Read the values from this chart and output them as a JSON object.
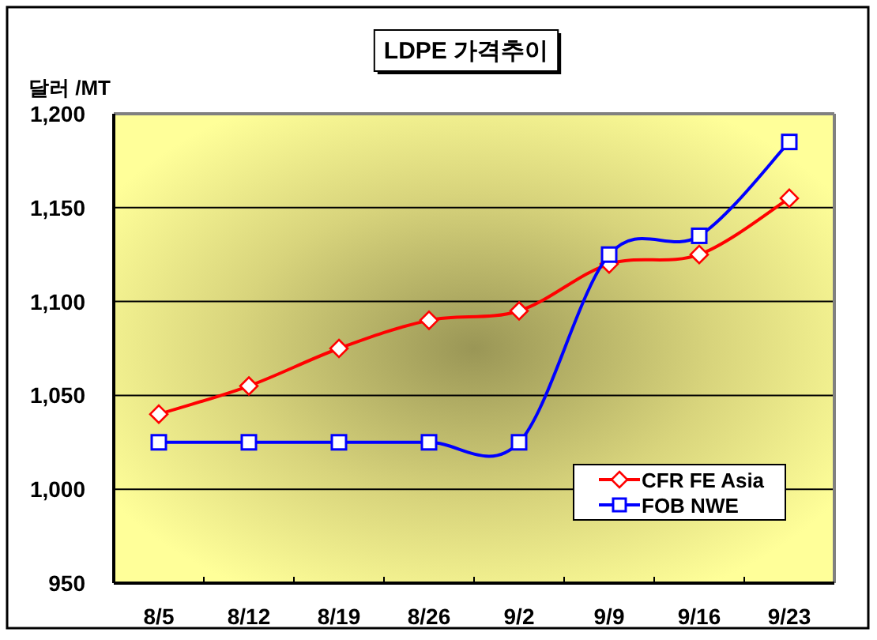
{
  "chart_data": {
    "type": "line",
    "title": "LDPE 가격추이",
    "ylabel": "달러 /MT",
    "categories": [
      "8/5",
      "8/12",
      "8/19",
      "8/26",
      "9/2",
      "9/9",
      "9/16",
      "9/23"
    ],
    "series": [
      {
        "name": "CFR FE Asia",
        "color": "#ff0000",
        "marker": "diamond",
        "values": [
          1040,
          1055,
          1075,
          1090,
          1095,
          1120,
          1125,
          1155
        ]
      },
      {
        "name": "FOB NWE",
        "color": "#0000ff",
        "marker": "square",
        "values": [
          1025,
          1025,
          1025,
          1025,
          1025,
          1125,
          1135,
          1185
        ]
      }
    ],
    "ylim": [
      950,
      1200
    ],
    "yticks": [
      950,
      {
        "value": 1000,
        "label": "1,000"
      },
      {
        "value": 1050,
        "label": "1,050"
      },
      {
        "value": 1100,
        "label": "1,100"
      },
      {
        "value": 1150,
        "label": "1,150"
      },
      {
        "value": 1200,
        "label": "1,200"
      }
    ],
    "grid": "y",
    "legend": "bottom right",
    "line_style": "solid"
  }
}
